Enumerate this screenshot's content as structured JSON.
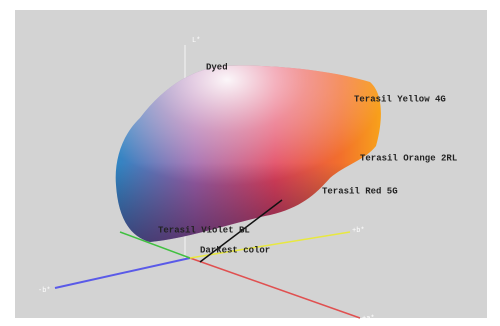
{
  "axes": {
    "l": "L*",
    "plus_b": "+b*",
    "minus_b": "-b*",
    "plus_a": "+a*"
  },
  "labels": [
    "Dyed",
    "Terasil Yellow 4G",
    "Terasil Orange 2RL",
    "Terasil Red 5G",
    "Terasil Violet BL",
    "Darkest color"
  ]
}
